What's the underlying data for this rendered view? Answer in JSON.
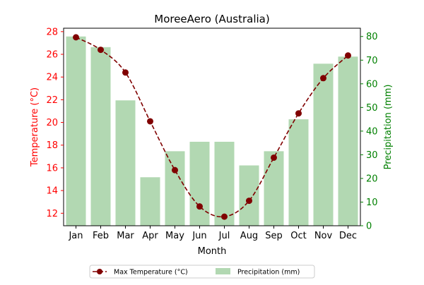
{
  "chart_data": {
    "type": "bar+line",
    "title": "MoreeAero (Australia)",
    "xlabel": "Month",
    "categories": [
      "Jan",
      "Feb",
      "Mar",
      "Apr",
      "May",
      "Jun",
      "Jul",
      "Aug",
      "Sep",
      "Oct",
      "Nov",
      "Dec"
    ],
    "y_left": {
      "label": "Temperature (°C)",
      "range": [
        10.9,
        28.3
      ],
      "ticks": [
        12,
        14,
        16,
        18,
        20,
        22,
        24,
        26,
        28
      ],
      "color": "#ff0000"
    },
    "y_right": {
      "label": "Precipitation (mm)",
      "range": [
        0,
        83.5
      ],
      "ticks": [
        0,
        10,
        20,
        30,
        40,
        50,
        60,
        70,
        80
      ],
      "color": "#008000"
    },
    "series": [
      {
        "name": "Max Temperature (°C)",
        "type": "line",
        "axis": "left",
        "color": "#800000",
        "values": [
          27.5,
          26.4,
          24.4,
          20.1,
          15.8,
          12.6,
          11.7,
          13.1,
          16.9,
          20.8,
          23.9,
          25.9
        ]
      },
      {
        "name": "Precipitation (mm)",
        "type": "bar",
        "axis": "right",
        "color": "#b2d8b2",
        "values": [
          80,
          75.5,
          53,
          20.5,
          31.5,
          35.5,
          35.5,
          25.5,
          31.5,
          45,
          68.5,
          71.5
        ]
      }
    ],
    "legend": {
      "position": "bottom-center",
      "entries": [
        "Max Temperature (°C)",
        "Precipitation (mm)"
      ]
    },
    "grid": false
  }
}
